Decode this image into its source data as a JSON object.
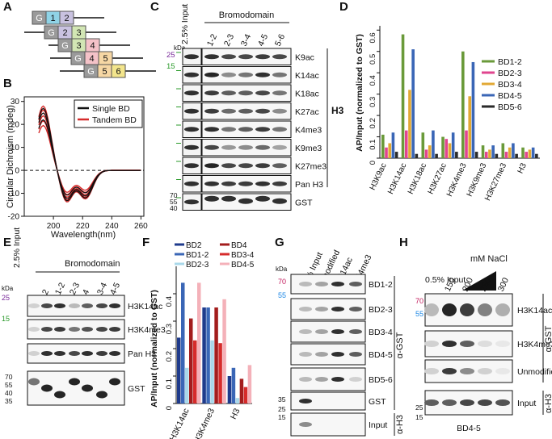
{
  "panels": {
    "A": {
      "letter": "A",
      "constructs": [
        [
          "G",
          "1",
          "2"
        ],
        [
          "G",
          "2",
          "3"
        ],
        [
          "G",
          "3",
          "4"
        ],
        [
          "G",
          "4",
          "5"
        ],
        [
          "G",
          "5",
          "6"
        ]
      ],
      "colors": {
        "G": "#9a9a9a",
        "1": "#8fd3e6",
        "2": "#c9c2e0",
        "3": "#d2e6b4",
        "4": "#f4c2c8",
        "5": "#f6d7a4",
        "6": "#f3e58c"
      }
    },
    "B": {
      "letter": "B",
      "ylabel": "Circular Dichroism (mdeg)",
      "xlabel": "Wavelength(nm)",
      "legend": [
        "Single BD",
        "Tandem BD"
      ],
      "legend_colors": [
        "#111111",
        "#d62b2b"
      ],
      "chart_data": {
        "type": "line",
        "xlim": [
          180,
          262
        ],
        "ylim": [
          -20,
          32
        ],
        "xticks": [
          "200",
          "220",
          "240",
          "260"
        ],
        "yticks": [
          "-20",
          "-10",
          "0",
          "10",
          "20",
          "30"
        ]
      }
    },
    "C": {
      "letter": "C",
      "input_label": "2.5% Input",
      "group_label": "Bromodomain",
      "lanes": [
        "1-2",
        "2-3",
        "3-4",
        "4-5",
        "5-6"
      ],
      "kda": "kDa",
      "markers_top": [
        "25",
        "15"
      ],
      "markers_gst": [
        "70",
        "55",
        "40"
      ],
      "rows": [
        "K9ac",
        "K14ac",
        "K18ac",
        "K27ac",
        "K4me3",
        "K9me3",
        "K27me3",
        "Pan H3",
        "GST"
      ],
      "side_label": "H3"
    },
    "D": {
      "letter": "D",
      "ylabel": "AP/Input (normalized to GST)",
      "legend": [
        "BD1-2",
        "BD2-3",
        "BD3-4",
        "BD4-5",
        "BD5-6"
      ],
      "colors": [
        "#6a9a3a",
        "#e0458f",
        "#e2a834",
        "#3a66b6",
        "#2a2a2a"
      ],
      "chart_data": {
        "type": "bar",
        "categories": [
          "H3K9ac",
          "H3K14ac",
          "H3K18ac",
          "H3K27ac",
          "H3K4me3",
          "H3K9me3",
          "H3K27me3",
          "H3"
        ],
        "ylim": [
          0,
          0.62
        ],
        "yticks": [
          "0",
          "0.1",
          "0.2",
          "0.3",
          "0.4",
          "0.5",
          "0.6"
        ],
        "series": [
          {
            "name": "BD1-2",
            "values": [
              0.11,
              0.58,
              0.12,
              0.1,
              0.5,
              0.06,
              0.07,
              0.05
            ]
          },
          {
            "name": "BD2-3",
            "values": [
              0.05,
              0.13,
              0.04,
              0.09,
              0.13,
              0.03,
              0.03,
              0.03
            ]
          },
          {
            "name": "BD3-4",
            "values": [
              0.07,
              0.32,
              0.06,
              0.07,
              0.29,
              0.04,
              0.05,
              0.04
            ]
          },
          {
            "name": "BD4-5",
            "values": [
              0.12,
              0.51,
              0.13,
              0.12,
              0.45,
              0.06,
              0.07,
              0.05
            ]
          },
          {
            "name": "BD5-6",
            "values": [
              0.03,
              0.02,
              0.02,
              0.03,
              0.03,
              0.02,
              0.02,
              0.02
            ]
          }
        ]
      }
    },
    "E": {
      "letter": "E",
      "input_label": "2.5% Input",
      "group_label": "Bromodomain",
      "lanes": [
        "2",
        "1-2",
        "2-3",
        "4",
        "3-4",
        "4-5"
      ],
      "kda": "kDa",
      "markers_top": [
        "25",
        "15"
      ],
      "markers_gst": [
        "70",
        "55",
        "40",
        "35"
      ],
      "rows": [
        "H3K14ac",
        "H3K4me3",
        "Pan H3",
        "GST"
      ]
    },
    "F": {
      "letter": "F",
      "ylabel": "AP/Input (normalized to GST)",
      "legend": [
        "BD2",
        "BD1-2",
        "BD2-3",
        "BD4",
        "BD3-4",
        "BD4-5"
      ],
      "colors": [
        "#1f3b8c",
        "#3a66b6",
        "#a9d8ea",
        "#a31d1d",
        "#d62b2b",
        "#f4b1b9"
      ],
      "chart_data": {
        "type": "bar",
        "categories": [
          "H3K14ac",
          "H3K4me3",
          "H3"
        ],
        "ylim": [
          0,
          0.5
        ],
        "yticks": [
          "0",
          "0.1",
          "0.2",
          "0.3",
          "0.4"
        ],
        "series": [
          {
            "name": "BD2",
            "values": [
              0.24,
              0.35,
              0.1
            ]
          },
          {
            "name": "BD1-2",
            "values": [
              0.44,
              0.35,
              0.13
            ]
          },
          {
            "name": "BD2-3",
            "values": [
              0.13,
              0.23,
              0.02
            ]
          },
          {
            "name": "BD4",
            "values": [
              0.31,
              0.35,
              0.09
            ]
          },
          {
            "name": "BD3-4",
            "values": [
              0.23,
              0.22,
              0.06
            ]
          },
          {
            "name": "BD4-5",
            "values": [
              0.44,
              0.38,
              0.14
            ]
          }
        ]
      }
    },
    "G": {
      "letter": "G",
      "lanes": [
        "0.5% Input",
        "Unmodified",
        "H3K14ac",
        "H3K4me3"
      ],
      "kda": "kDa",
      "markers_top": [
        "70",
        "55"
      ],
      "markers_gst": [
        "35",
        "25"
      ],
      "marker_input": "15",
      "rows": [
        "BD1-2",
        "BD2-3",
        "BD3-4",
        "BD4-5",
        "BD5-6",
        "GST",
        "Input"
      ],
      "side_gst": "α-GST",
      "side_h3": "α-H3"
    },
    "H": {
      "letter": "H",
      "nacl_label": "mM NaCl",
      "input_label": "0.5% Input",
      "concentrations": [
        "150",
        "200",
        "250",
        "300"
      ],
      "markers_top": [
        "70",
        "55"
      ],
      "markers_input": [
        "25",
        "15"
      ],
      "rows": [
        "H3K14ac",
        "H3K4me3",
        "Unmodified",
        "Input"
      ],
      "side_gst": "α-GST",
      "side_h3": "α-H3",
      "footer": "BD4-5"
    }
  }
}
